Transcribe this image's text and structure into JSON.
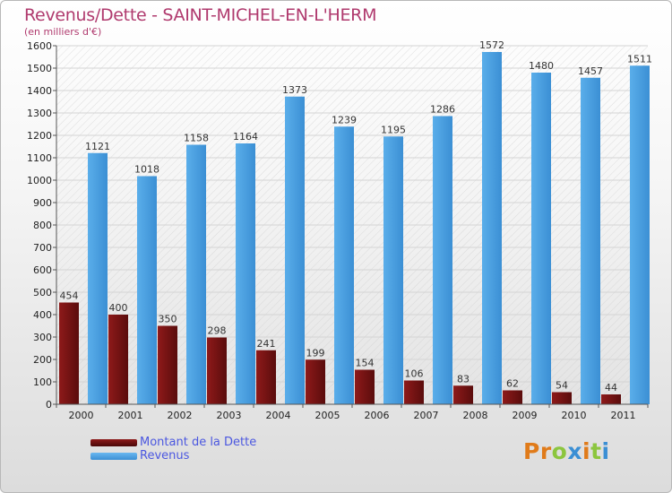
{
  "header": {
    "title": "Revenus/Dette - SAINT-MICHEL-EN-L'HERM",
    "subtitle": "(en milliers d'€)"
  },
  "legend": {
    "items": [
      {
        "label": "Montant de la Dette",
        "color": "#7a1414"
      },
      {
        "label": "Revenus",
        "color": "#4a9ee0"
      }
    ]
  },
  "logo": {
    "text": "Proxiti"
  },
  "chart_data": {
    "type": "bar",
    "title": "Revenus/Dette - SAINT-MICHEL-EN-L'HERM",
    "subtitle": "(en milliers d'€)",
    "categories": [
      "2000",
      "2001",
      "2002",
      "2003",
      "2004",
      "2005",
      "2006",
      "2007",
      "2008",
      "2009",
      "2010",
      "2011"
    ],
    "series": [
      {
        "name": "Montant de la Dette",
        "color": "#7a1414",
        "values": [
          454,
          400,
          350,
          298,
          241,
          199,
          154,
          106,
          83,
          62,
          54,
          44
        ]
      },
      {
        "name": "Revenus",
        "color": "#4a9ee0",
        "values": [
          1121,
          1018,
          1158,
          1164,
          1373,
          1239,
          1195,
          1286,
          1572,
          1480,
          1457,
          1511
        ]
      }
    ],
    "ylim": [
      0,
      1600
    ],
    "yticks": [
      0,
      100,
      200,
      300,
      400,
      500,
      600,
      700,
      800,
      900,
      1000,
      1100,
      1200,
      1300,
      1400,
      1500,
      1600
    ],
    "grid": true,
    "legend_position": "bottom-left"
  }
}
